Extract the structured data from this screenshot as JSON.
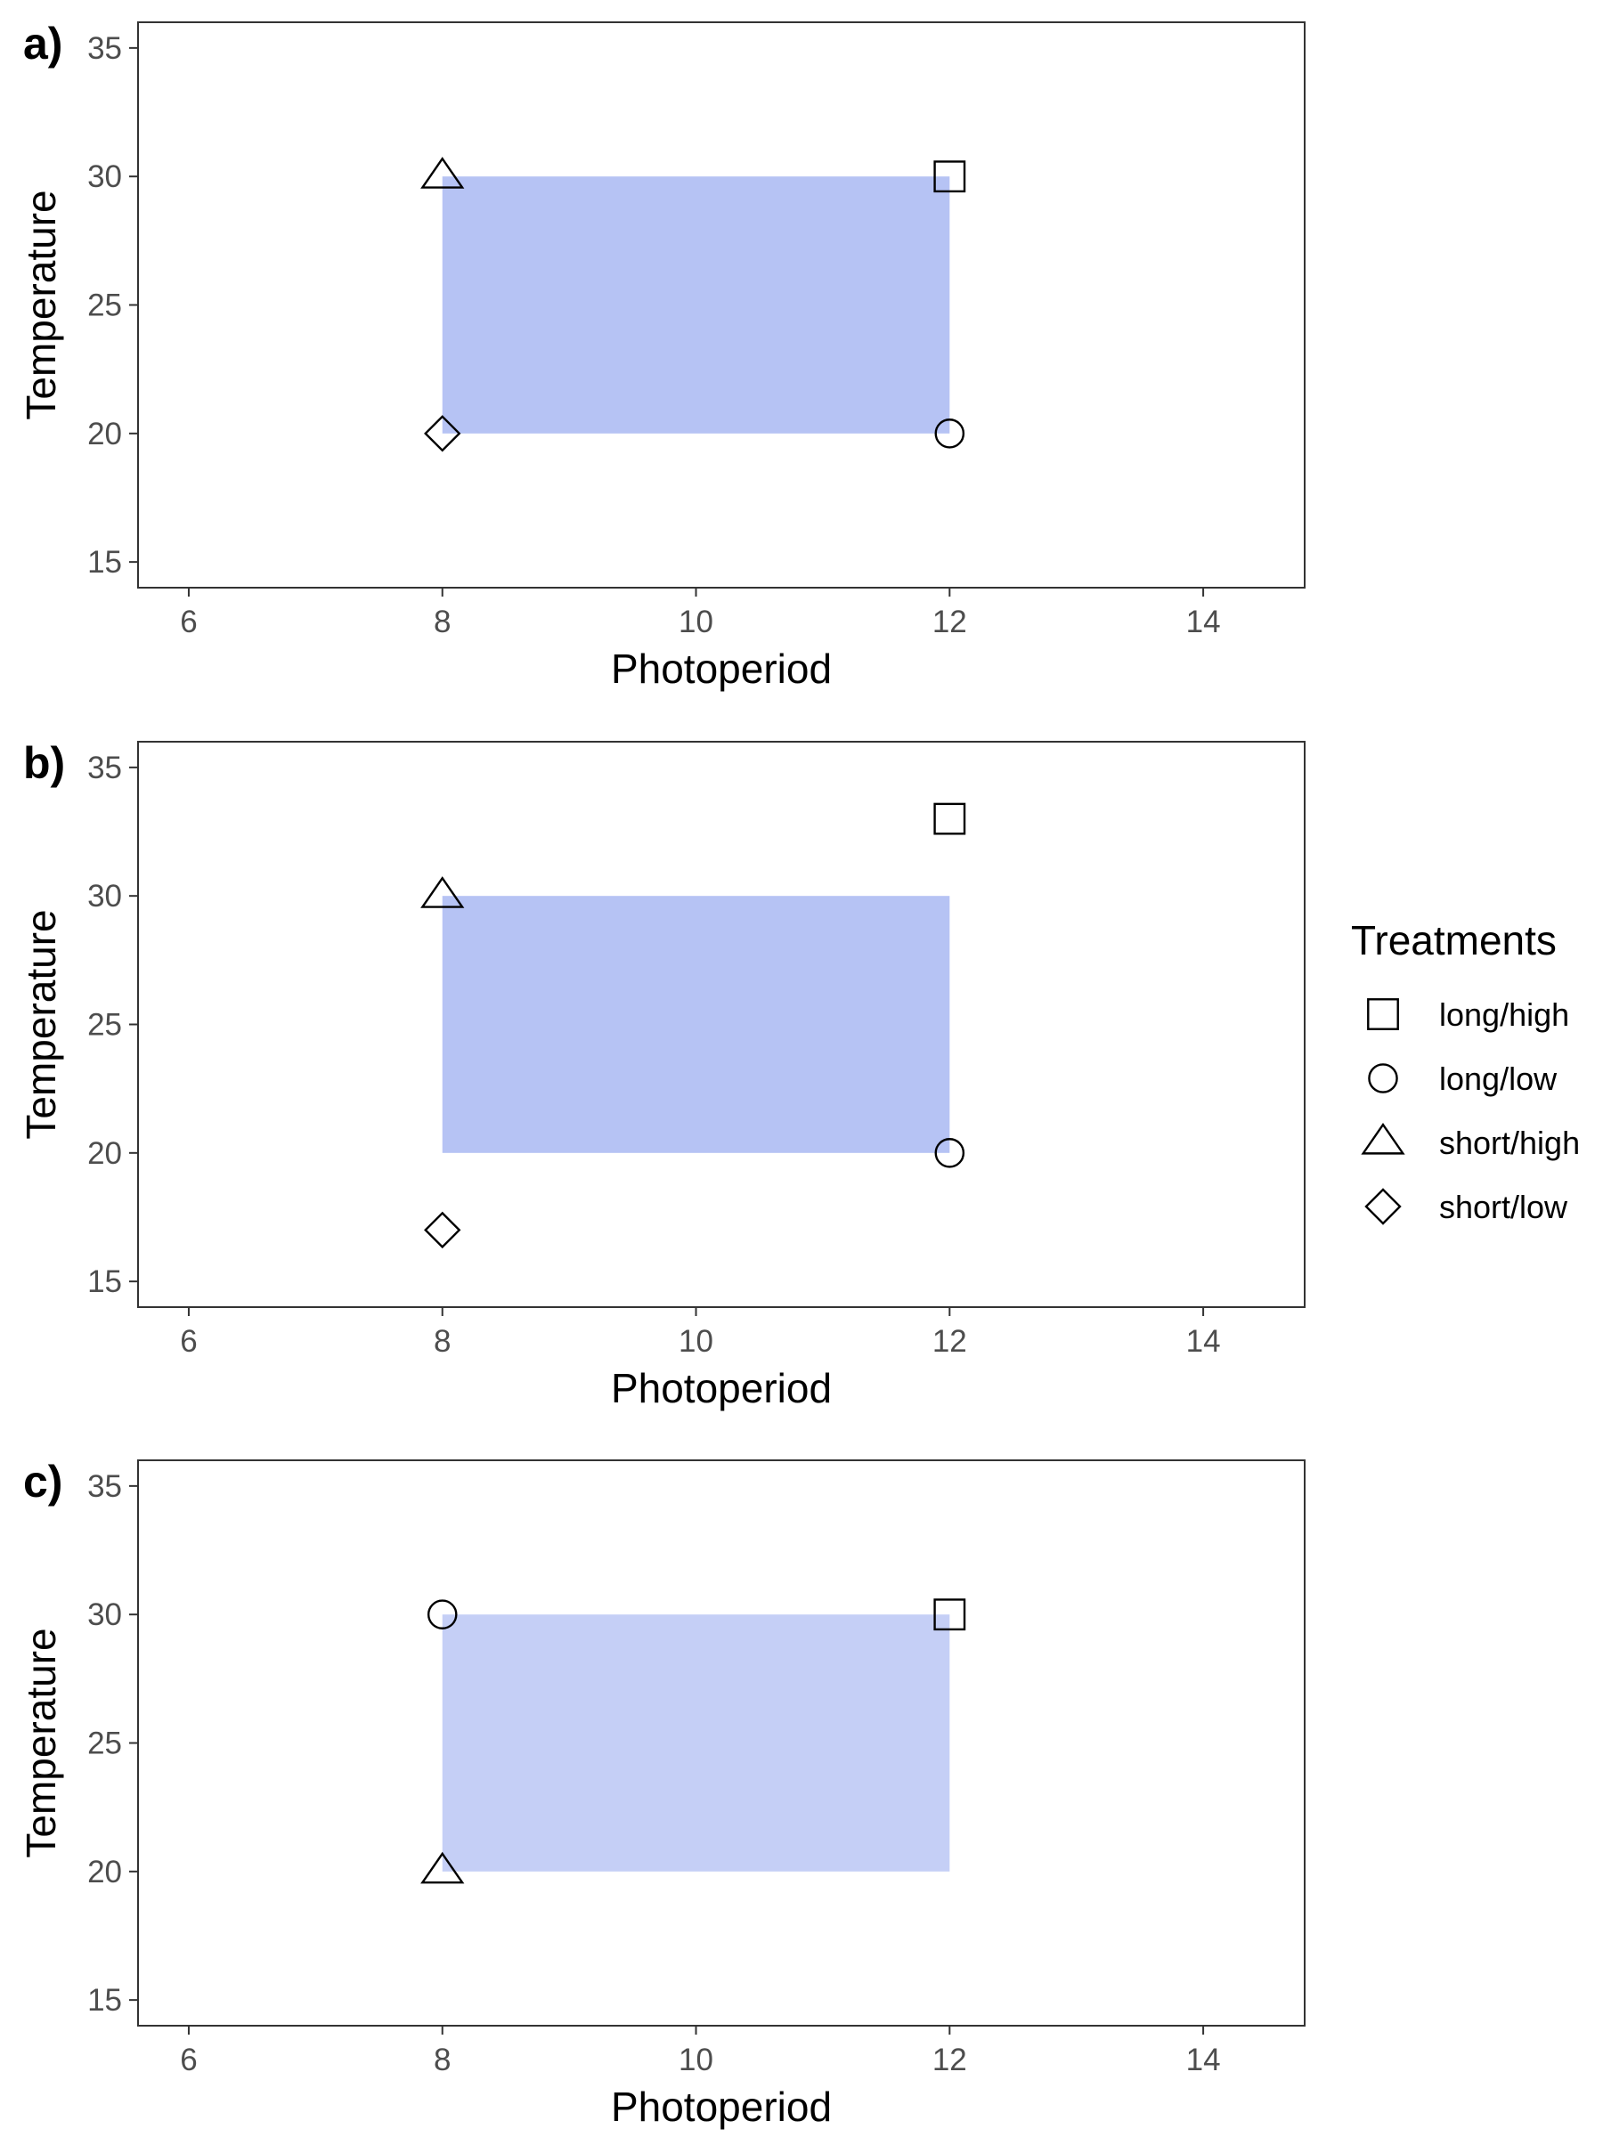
{
  "chart_data": [
    {
      "type": "scatter",
      "panel_label": "a)",
      "xlabel": "Photoperiod",
      "ylabel": "Temperature",
      "xlim": [
        5.6,
        14.8
      ],
      "ylim": [
        14,
        36
      ],
      "xticks": [
        6,
        8,
        10,
        12,
        14
      ],
      "yticks": [
        15,
        20,
        25,
        30,
        35
      ],
      "grid": false,
      "shaded_region": {
        "x": [
          8,
          12
        ],
        "y": [
          20,
          30
        ],
        "color": "#b6c3f4"
      },
      "points": [
        {
          "treatment": "long/high",
          "x": 12,
          "y": 30
        },
        {
          "treatment": "long/low",
          "x": 12,
          "y": 20
        },
        {
          "treatment": "short/high",
          "x": 8,
          "y": 30
        },
        {
          "treatment": "short/low",
          "x": 8,
          "y": 20
        }
      ]
    },
    {
      "type": "scatter",
      "panel_label": "b)",
      "xlabel": "Photoperiod",
      "ylabel": "Temperature",
      "xlim": [
        5.6,
        14.8
      ],
      "ylim": [
        14,
        36
      ],
      "xticks": [
        6,
        8,
        10,
        12,
        14
      ],
      "yticks": [
        15,
        20,
        25,
        30,
        35
      ],
      "grid": false,
      "shaded_region": {
        "x": [
          8,
          12
        ],
        "y": [
          20,
          30
        ],
        "color": "#b6c3f4"
      },
      "points": [
        {
          "treatment": "long/high",
          "x": 12,
          "y": 33
        },
        {
          "treatment": "long/low",
          "x": 12,
          "y": 20
        },
        {
          "treatment": "short/high",
          "x": 8,
          "y": 30
        },
        {
          "treatment": "short/low",
          "x": 8,
          "y": 17
        }
      ]
    },
    {
      "type": "scatter",
      "panel_label": "c)",
      "xlabel": "Photoperiod",
      "ylabel": "Temperature",
      "xlim": [
        5.6,
        14.8
      ],
      "ylim": [
        14,
        36
      ],
      "xticks": [
        6,
        8,
        10,
        12,
        14
      ],
      "yticks": [
        15,
        20,
        25,
        30,
        35
      ],
      "grid": false,
      "shaded_region": {
        "x": [
          8,
          12
        ],
        "y": [
          20,
          30
        ],
        "color": "#c5cff6"
      },
      "points": [
        {
          "treatment": "long/high",
          "x": 12,
          "y": 30
        },
        {
          "treatment": "long/low",
          "x": 8,
          "y": 30
        },
        {
          "treatment": "short/high",
          "x": 8,
          "y": 20
        }
      ]
    }
  ],
  "legend": {
    "title": "Treatments",
    "placement": "right",
    "items": [
      {
        "label": "long/high",
        "shape": "square"
      },
      {
        "label": "long/low",
        "shape": "circle"
      },
      {
        "label": "short/high",
        "shape": "triangle"
      },
      {
        "label": "short/low",
        "shape": "diamond"
      }
    ]
  }
}
